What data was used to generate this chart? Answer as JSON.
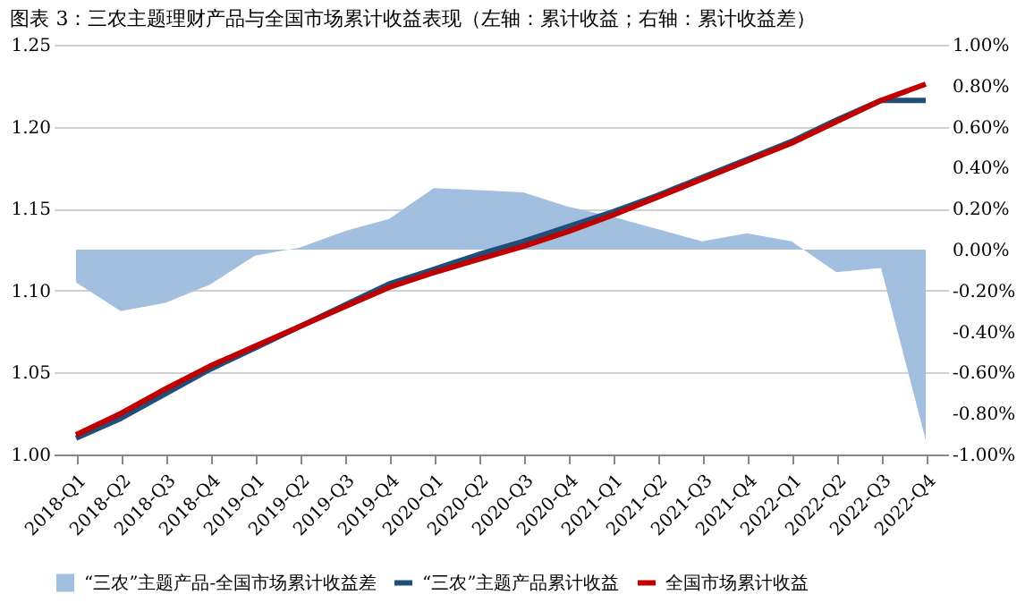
{
  "chart_data": {
    "type": "line",
    "title": "图表 3：三农主题理财产品与全国市场累计收益表现（左轴：累计收益；右轴：累计收益差）",
    "categories": [
      "2018-Q1",
      "2018-Q2",
      "2018-Q3",
      "2018-Q4",
      "2019-Q1",
      "2019-Q2",
      "2019-Q3",
      "2019-Q4",
      "2020-Q1",
      "2020-Q2",
      "2020-Q3",
      "2020-Q4",
      "2021-Q1",
      "2021-Q2",
      "2021-Q3",
      "2021-Q4",
      "2022-Q1",
      "2022-Q2",
      "2022-Q3",
      "2022-Q4"
    ],
    "series": [
      {
        "name": "“三农”主题产品-全国市场累计收益差",
        "type": "area",
        "axis": "y2",
        "color": "#a3bfdf",
        "values": [
          -0.16,
          -0.3,
          -0.26,
          -0.17,
          -0.03,
          0.01,
          0.09,
          0.15,
          0.3,
          0.29,
          0.28,
          0.21,
          0.16,
          0.1,
          0.04,
          0.08,
          0.04,
          -0.11,
          -0.09,
          -0.93
        ]
      },
      {
        "name": "“三农”主题产品累计收益",
        "color": "#1f4e79",
        "values": [
          1.01,
          1.022,
          1.037,
          1.052,
          1.065,
          1.078,
          1.091,
          1.104,
          1.113,
          1.122,
          1.13,
          1.139,
          1.148,
          1.158,
          1.169,
          1.18,
          1.191,
          1.204,
          1.216,
          1.216
        ]
      },
      {
        "name": "全国市场累计收益",
        "color": "#c00000",
        "values": [
          1.012,
          1.025,
          1.04,
          1.054,
          1.066,
          1.078,
          1.09,
          1.102,
          1.111,
          1.119,
          1.127,
          1.136,
          1.146,
          1.157,
          1.168,
          1.179,
          1.19,
          1.203,
          1.216,
          1.226
        ]
      }
    ],
    "ylim": [
      1.0,
      1.25
    ],
    "yticks": [
      {
        "value": 1.0,
        "label": "1.00"
      },
      {
        "value": 1.05,
        "label": "1.05"
      },
      {
        "value": 1.1,
        "label": "1.10"
      },
      {
        "value": 1.15,
        "label": "1.15"
      },
      {
        "value": 1.2,
        "label": "1.20"
      },
      {
        "value": 1.25,
        "label": "1.25"
      }
    ],
    "y2lim": [
      -1.0,
      1.0
    ],
    "y2ticks": [
      {
        "value": -1.0,
        "label": "-1.00%"
      },
      {
        "value": -0.8,
        "label": "-0.80%"
      },
      {
        "value": -0.6,
        "label": "-0.60%"
      },
      {
        "value": -0.4,
        "label": "-0.40%"
      },
      {
        "value": -0.2,
        "label": "-0.20%"
      },
      {
        "value": 0,
        "label": "0.00%"
      },
      {
        "value": 0.2,
        "label": "0.20%"
      },
      {
        "value": 0.4,
        "label": "0.40%"
      },
      {
        "value": 0.6,
        "label": "0.60%"
      },
      {
        "value": 0.8,
        "label": "0.80%"
      },
      {
        "value": 1.0,
        "label": "1.00%"
      }
    ],
    "grid": "y",
    "legend": "bottom",
    "line_style": "solid",
    "marker": "none"
  }
}
